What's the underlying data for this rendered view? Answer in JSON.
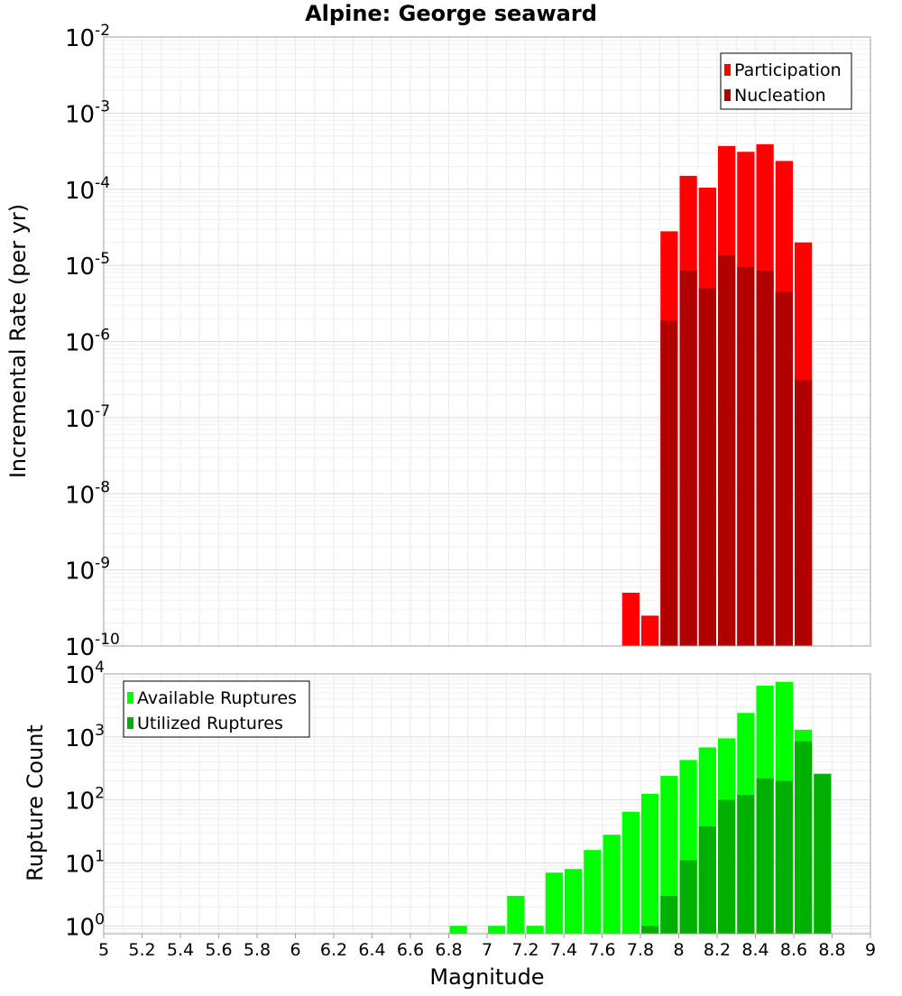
{
  "title": "Alpine: George seaward",
  "xlabel": "Magnitude",
  "x_tick_labels": [
    "5",
    "5.2",
    "5.4",
    "5.6",
    "5.8",
    "6",
    "6.2",
    "6.4",
    "6.6",
    "6.8",
    "7",
    "7.2",
    "7.4",
    "7.6",
    "7.8",
    "8",
    "8.2",
    "8.4",
    "8.6",
    "8.8",
    "9"
  ],
  "chart_data": [
    {
      "type": "bar",
      "ylabel": "Incremental Rate (per yr)",
      "y_scale": "log",
      "ylim": [
        1e-10,
        0.01
      ],
      "xlim": [
        5.0,
        9.0
      ],
      "grid": true,
      "legend": "top-right",
      "x": [
        7.7,
        7.8,
        7.9,
        8.0,
        8.1,
        8.2,
        8.3,
        8.4,
        8.5,
        8.6
      ],
      "series": [
        {
          "name": "Participation",
          "color": "#ff0000",
          "values": [
            5e-10,
            2.5e-10,
            2.8e-05,
            0.00015,
            0.000105,
            0.00037,
            0.00031,
            0.00039,
            0.000235,
            2e-05
          ]
        },
        {
          "name": "Nucleation",
          "color": "#b00000",
          "values": [
            null,
            null,
            1.9e-06,
            8.5e-06,
            5e-06,
            1.35e-05,
            9.5e-06,
            8.5e-06,
            4.5e-06,
            3.1e-07
          ]
        }
      ]
    },
    {
      "type": "bar",
      "ylabel": "Rupture Count",
      "y_scale": "log",
      "ylim": [
        0.75,
        10000
      ],
      "xlim": [
        5.0,
        9.0
      ],
      "grid": true,
      "legend": "top-left",
      "x": [
        6.8,
        6.9,
        7.0,
        7.1,
        7.2,
        7.3,
        7.4,
        7.5,
        7.6,
        7.7,
        7.8,
        7.9,
        8.0,
        8.1,
        8.2,
        8.3,
        8.4,
        8.5,
        8.6,
        8.7
      ],
      "series": [
        {
          "name": "Available Ruptures",
          "color": "#00ff00",
          "values": [
            1,
            null,
            1,
            3,
            1,
            7,
            8,
            16,
            28,
            65,
            125,
            240,
            430,
            680,
            950,
            2400,
            6500,
            7500,
            1300,
            2
          ]
        },
        {
          "name": "Utilized Ruptures",
          "color": "#00b000",
          "values": [
            null,
            null,
            null,
            null,
            null,
            null,
            null,
            null,
            null,
            null,
            1,
            3,
            11,
            38,
            100,
            120,
            220,
            200,
            850,
            260
          ]
        }
      ]
    }
  ]
}
